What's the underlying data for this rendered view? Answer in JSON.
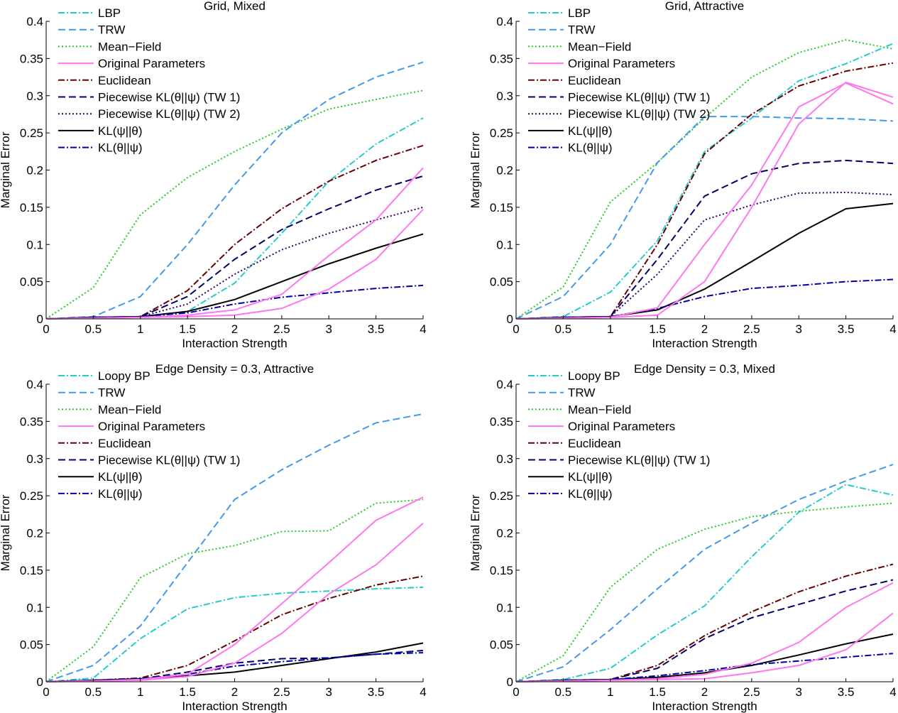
{
  "styles": {
    "LBP": {
      "color": "#22cccc",
      "dash": "dashdot"
    },
    "Loopy BP": {
      "color": "#22cccc",
      "dash": "dashdot"
    },
    "TRW": {
      "color": "#4499ee",
      "dash": "dashed"
    },
    "Mean−Field": {
      "color": "#22cc22",
      "dash": "dotted"
    },
    "Original Parameters": {
      "color": "#ff77ee",
      "dash": "solid"
    },
    "Euclidean": {
      "color": "#660000",
      "dash": "dashdot"
    },
    "Piecewise KL(θ||ψ) (TW 1)": {
      "color": "#000066",
      "dash": "dashed"
    },
    "Piecewise KL(θ||ψ) (TW 2)": {
      "color": "#330066",
      "dash": "dotted"
    },
    "KL(ψ||θ)": {
      "color": "#000000",
      "dash": "solid"
    },
    "KL(θ||ψ)": {
      "color": "#0000aa",
      "dash": "dashdot"
    }
  },
  "chart_data": [
    {
      "type": "line",
      "title": "Grid, Mixed",
      "xlabel": "Interaction Strength",
      "ylabel": "Marginal Error",
      "xlim": [
        0,
        4
      ],
      "ylim": [
        0,
        0.4
      ],
      "xticks": [
        "0",
        "0.5",
        "1",
        "1.5",
        "2",
        "2.5",
        "3",
        "3.5",
        "4"
      ],
      "yticks": [
        "0",
        "0.05",
        "0.1",
        "0.15",
        "0.2",
        "0.25",
        "0.3",
        "0.35",
        "0.4"
      ],
      "legend": [
        "LBP",
        "TRW",
        "Mean−Field",
        "Original Parameters",
        "Euclidean",
        "Piecewise KL(θ||ψ) (TW 1)",
        "Piecewise KL(θ||ψ) (TW 2)",
        "KL(ψ||θ)",
        "KL(θ||ψ)"
      ],
      "legend_position": "top-left",
      "x": [
        0,
        0.5,
        1,
        1.5,
        2,
        2.5,
        3,
        3.5,
        4
      ],
      "series": [
        {
          "name": "Mean−Field",
          "values": [
            0,
            0.042,
            0.14,
            0.19,
            0.225,
            0.255,
            0.282,
            0.295,
            0.307
          ]
        },
        {
          "name": "TRW",
          "values": [
            0,
            0.003,
            0.03,
            0.1,
            0.18,
            0.25,
            0.295,
            0.325,
            0.345
          ]
        },
        {
          "name": "LBP",
          "values": [
            0,
            0.002,
            0.003,
            0.01,
            0.048,
            0.115,
            0.185,
            0.235,
            0.27
          ]
        },
        {
          "name": "Euclidean",
          "values": [
            0,
            0.002,
            0.003,
            0.038,
            0.1,
            0.148,
            0.185,
            0.213,
            0.233
          ]
        },
        {
          "name": "Piecewise KL(θ||ψ) (TW 1)",
          "values": [
            0,
            0.002,
            0.003,
            0.03,
            0.08,
            0.12,
            0.148,
            0.173,
            0.192
          ]
        },
        {
          "name": "Piecewise KL(θ||ψ) (TW 2)",
          "values": [
            0,
            0.002,
            0.003,
            0.02,
            0.06,
            0.093,
            0.115,
            0.133,
            0.15
          ]
        },
        {
          "name": "KL(ψ||θ)",
          "values": [
            0,
            0.002,
            0.003,
            0.01,
            0.026,
            0.05,
            0.074,
            0.095,
            0.114
          ]
        },
        {
          "name": "KL(θ||ψ)",
          "values": [
            0,
            0.002,
            0.003,
            0.008,
            0.02,
            0.029,
            0.035,
            0.041,
            0.045
          ]
        },
        {
          "name": "Original Parameters",
          "values": [
            0,
            0.001,
            0.002,
            0.003,
            0.005,
            0.014,
            0.04,
            0.08,
            0.147
          ]
        },
        {
          "name": "Original Parameters",
          "values": [
            0,
            0.001,
            0.002,
            0.005,
            0.012,
            0.033,
            0.085,
            0.133,
            0.203
          ]
        }
      ]
    },
    {
      "type": "line",
      "title": "Grid, Attractive",
      "xlabel": "Interaction Strength",
      "ylabel": "Marginal Error",
      "xlim": [
        0,
        4
      ],
      "ylim": [
        0,
        0.4
      ],
      "xticks": [
        "0",
        "0.5",
        "1",
        "1.5",
        "2",
        "2.5",
        "3",
        "3.5",
        "4"
      ],
      "yticks": [
        "0",
        "0.05",
        "0.1",
        "0.15",
        "0.2",
        "0.25",
        "0.3",
        "0.35",
        "0.4"
      ],
      "legend": [
        "LBP",
        "TRW",
        "Mean−Field",
        "Original Parameters",
        "Euclidean",
        "Piecewise KL(θ||ψ) (TW 1)",
        "Piecewise KL(θ||ψ) (TW 2)",
        "KL(ψ||θ)",
        "KL(θ||ψ)"
      ],
      "legend_position": "top-left",
      "x": [
        0,
        0.5,
        1,
        1.5,
        2,
        2.5,
        3,
        3.5,
        4
      ],
      "series": [
        {
          "name": "Mean−Field",
          "values": [
            0,
            0.043,
            0.157,
            0.21,
            0.27,
            0.325,
            0.358,
            0.375,
            0.363
          ]
        },
        {
          "name": "LBP",
          "values": [
            0,
            0.003,
            0.036,
            0.105,
            0.225,
            0.27,
            0.32,
            0.343,
            0.37
          ]
        },
        {
          "name": "TRW",
          "values": [
            0,
            0.03,
            0.1,
            0.21,
            0.272,
            0.272,
            0.27,
            0.269,
            0.266
          ]
        },
        {
          "name": "Euclidean",
          "values": [
            0,
            0.002,
            0.003,
            0.1,
            0.222,
            0.275,
            0.313,
            0.333,
            0.344
          ]
        },
        {
          "name": "Piecewise KL(θ||ψ) (TW 1)",
          "values": [
            0,
            0.002,
            0.003,
            0.08,
            0.165,
            0.195,
            0.209,
            0.213,
            0.209
          ]
        },
        {
          "name": "Piecewise KL(θ||ψ) (TW 2)",
          "values": [
            0,
            0.002,
            0.003,
            0.06,
            0.133,
            0.153,
            0.169,
            0.17,
            0.167
          ]
        },
        {
          "name": "KL(ψ||θ)",
          "values": [
            0,
            0.002,
            0.003,
            0.012,
            0.04,
            0.077,
            0.115,
            0.148,
            0.155
          ]
        },
        {
          "name": "KL(θ||ψ)",
          "values": [
            0,
            0.002,
            0.003,
            0.014,
            0.03,
            0.041,
            0.045,
            0.05,
            0.053
          ]
        },
        {
          "name": "Original Parameters",
          "values": [
            0,
            0.001,
            0.002,
            0.005,
            0.05,
            0.15,
            0.262,
            0.318,
            0.298
          ]
        },
        {
          "name": "Original Parameters",
          "values": [
            0,
            0.001,
            0.002,
            0.015,
            0.1,
            0.18,
            0.285,
            0.317,
            0.289
          ]
        }
      ]
    },
    {
      "type": "line",
      "title": "Edge Density = 0.3, Attractive",
      "xlabel": "Interaction Strength",
      "ylabel": "Marginal Error",
      "xlim": [
        0,
        4
      ],
      "ylim": [
        0,
        0.4
      ],
      "xticks": [
        "0",
        "0.5",
        "1",
        "1.5",
        "2",
        "2.5",
        "3",
        "3.5",
        "4"
      ],
      "yticks": [
        "0",
        "0.05",
        "0.1",
        "0.15",
        "0.2",
        "0.25",
        "0.3",
        "0.35",
        "0.4"
      ],
      "legend": [
        "Loopy BP",
        "TRW",
        "Mean−Field",
        "Original Parameters",
        "Euclidean",
        "Piecewise KL(θ||ψ) (TW 1)",
        "KL(ψ||θ)",
        "KL(θ||ψ)"
      ],
      "legend_position": "top-left",
      "x": [
        0,
        0.5,
        1,
        1.5,
        2,
        2.5,
        3,
        3.5,
        4
      ],
      "series": [
        {
          "name": "TRW",
          "values": [
            0,
            0.022,
            0.075,
            0.16,
            0.245,
            0.285,
            0.318,
            0.348,
            0.36
          ]
        },
        {
          "name": "Mean−Field",
          "values": [
            0,
            0.047,
            0.14,
            0.172,
            0.183,
            0.202,
            0.203,
            0.24,
            0.245
          ]
        },
        {
          "name": "Loopy BP",
          "values": [
            0,
            0.005,
            0.058,
            0.098,
            0.113,
            0.119,
            0.122,
            0.125,
            0.127
          ]
        },
        {
          "name": "Euclidean",
          "values": [
            0,
            0.002,
            0.005,
            0.022,
            0.055,
            0.09,
            0.112,
            0.13,
            0.142
          ]
        },
        {
          "name": "Piecewise KL(θ||ψ) (TW 1)",
          "values": [
            0,
            0.002,
            0.004,
            0.013,
            0.025,
            0.031,
            0.032,
            0.037,
            0.042
          ]
        },
        {
          "name": "KL(ψ||θ)",
          "values": [
            0,
            0.002,
            0.004,
            0.008,
            0.013,
            0.022,
            0.031,
            0.04,
            0.052
          ]
        },
        {
          "name": "KL(θ||ψ)",
          "values": [
            0,
            0.002,
            0.004,
            0.01,
            0.021,
            0.027,
            0.032,
            0.037,
            0.039
          ]
        },
        {
          "name": "Original Parameters",
          "values": [
            0,
            0.001,
            0.003,
            0.01,
            0.05,
            0.105,
            0.16,
            0.217,
            0.248
          ]
        },
        {
          "name": "Original Parameters",
          "values": [
            0,
            0.001,
            0.002,
            0.007,
            0.025,
            0.065,
            0.118,
            0.157,
            0.213
          ]
        }
      ]
    },
    {
      "type": "line",
      "title": "Edge Density = 0.3, Mixed",
      "xlabel": "Interaction Strength",
      "ylabel": "Marginal Error",
      "xlim": [
        0,
        4
      ],
      "ylim": [
        0,
        0.4
      ],
      "xticks": [
        "0",
        "0.5",
        "1",
        "1.5",
        "2",
        "2.5",
        "3",
        "3.5",
        "4"
      ],
      "yticks": [
        "0",
        "0.05",
        "0.1",
        "0.15",
        "0.2",
        "0.25",
        "0.3",
        "0.35",
        "0.4"
      ],
      "legend": [
        "Loopy BP",
        "TRW",
        "Mean−Field",
        "Original Parameters",
        "Euclidean",
        "Piecewise KL(θ||ψ) (TW 1)",
        "KL(ψ||θ)",
        "KL(θ||ψ)"
      ],
      "legend_position": "top-left",
      "x": [
        0,
        0.5,
        1,
        1.5,
        2,
        2.5,
        3,
        3.5,
        4
      ],
      "series": [
        {
          "name": "TRW",
          "values": [
            0,
            0.02,
            0.07,
            0.125,
            0.178,
            0.213,
            0.245,
            0.27,
            0.292
          ]
        },
        {
          "name": "Loopy BP",
          "values": [
            0,
            0.003,
            0.018,
            0.063,
            0.102,
            0.168,
            0.228,
            0.265,
            0.251
          ]
        },
        {
          "name": "Mean−Field",
          "values": [
            0,
            0.035,
            0.127,
            0.178,
            0.205,
            0.222,
            0.229,
            0.235,
            0.24
          ]
        },
        {
          "name": "Euclidean",
          "values": [
            0,
            0.002,
            0.003,
            0.022,
            0.062,
            0.094,
            0.121,
            0.142,
            0.158
          ]
        },
        {
          "name": "Piecewise KL(θ||ψ) (TW 1)",
          "values": [
            0,
            0.002,
            0.003,
            0.018,
            0.058,
            0.086,
            0.104,
            0.122,
            0.137
          ]
        },
        {
          "name": "KL(ψ||θ)",
          "values": [
            0,
            0.002,
            0.003,
            0.006,
            0.012,
            0.022,
            0.036,
            0.051,
            0.064
          ]
        },
        {
          "name": "KL(θ||ψ)",
          "values": [
            0,
            0.002,
            0.003,
            0.008,
            0.015,
            0.023,
            0.028,
            0.033,
            0.038
          ]
        },
        {
          "name": "Original Parameters",
          "values": [
            0,
            0.001,
            0.002,
            0.004,
            0.01,
            0.025,
            0.053,
            0.1,
            0.133
          ]
        },
        {
          "name": "Original Parameters",
          "values": [
            0,
            0.001,
            0.002,
            0.003,
            0.004,
            0.012,
            0.022,
            0.043,
            0.092
          ]
        }
      ]
    }
  ]
}
